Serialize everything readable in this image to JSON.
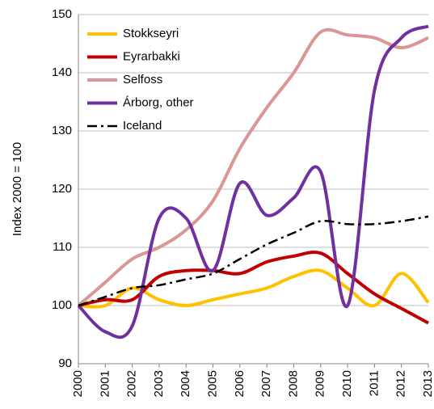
{
  "chart_data": {
    "type": "line",
    "y_label": "Index 2000 = 100",
    "categories": [
      "2000",
      "2001",
      "2002",
      "2003",
      "2004",
      "2005",
      "2006",
      "2007",
      "2008",
      "2009",
      "2010",
      "2011",
      "2012",
      "2013"
    ],
    "ylim": [
      90,
      150
    ],
    "yticks": [
      90,
      100,
      110,
      120,
      130,
      140,
      150
    ],
    "grid": true,
    "legend": "upper left",
    "series": [
      {
        "name": "Stokkseyri",
        "color": "#ffc000",
        "values": [
          100,
          100,
          103,
          101,
          100,
          101,
          102,
          103,
          105,
          106,
          103,
          100,
          105.5,
          100.5
        ]
      },
      {
        "name": "Eyrarbakki",
        "color": "#c00000",
        "values": [
          100,
          101,
          101,
          105,
          106,
          106,
          105.5,
          107.5,
          108.5,
          109,
          105.5,
          102,
          99.5,
          97
        ]
      },
      {
        "name": "Selfoss",
        "color": "#d99694",
        "values": [
          100,
          104,
          108,
          110,
          113,
          118,
          127,
          134,
          140,
          147,
          146.5,
          146,
          144.3,
          146
        ]
      },
      {
        "name": "Árborg, other",
        "color": "#7030a0",
        "values": [
          100,
          95.5,
          96.5,
          115,
          115,
          106,
          121,
          115.5,
          118.5,
          123,
          100,
          137,
          146,
          148
        ]
      },
      {
        "name": "Iceland",
        "color": "#000000",
        "dash": "dash-dot",
        "values": [
          100,
          101.5,
          103,
          103.5,
          104.5,
          105.5,
          108,
          110.5,
          112.5,
          114.5,
          114,
          114,
          114.5,
          115.3
        ]
      }
    ]
  }
}
